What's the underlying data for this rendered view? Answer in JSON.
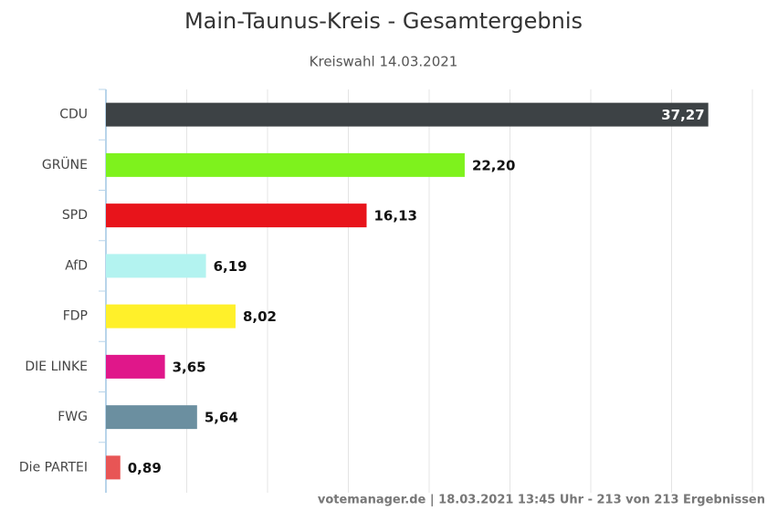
{
  "chart_data": {
    "type": "bar",
    "orientation": "horizontal",
    "title": "Main-Taunus-Kreis - Gesamtergebnis",
    "subtitle": "Kreiswahl 14.03.2021",
    "categories": [
      "CDU",
      "GRÜNE",
      "SPD",
      "AfD",
      "FDP",
      "DIE LINKE",
      "FWG",
      "Die PARTEI"
    ],
    "values": [
      37.27,
      22.2,
      16.13,
      6.19,
      8.02,
      3.65,
      5.64,
      0.89
    ],
    "value_labels": [
      "37,27",
      "22,20",
      "16,13",
      "6,19",
      "8,02",
      "3,65",
      "5,64",
      "0,89"
    ],
    "colors": [
      "#3d4245",
      "#7ef21d",
      "#e8141b",
      "#b3f3f0",
      "#fff02a",
      "#e0178a",
      "#6b8fa0",
      "#e85555"
    ],
    "xlim": [
      0,
      40
    ],
    "xticks": [
      0,
      5,
      10,
      15,
      20,
      25,
      30,
      35,
      40
    ],
    "grid": true,
    "footer": "votemanager.de | 18.03.2021 13:45 Uhr - 213 von 213 Ergebnissen"
  }
}
